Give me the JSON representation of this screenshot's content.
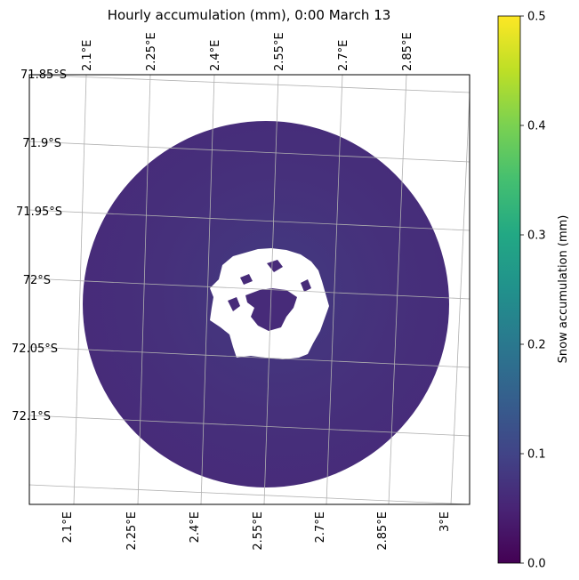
{
  "chart_data": {
    "type": "heatmap",
    "title": "Hourly accumulation (mm), 0:00 March 13",
    "colorbar": {
      "label": "Snow accumulation (mm)",
      "range": [
        0,
        0.5
      ],
      "ticks": [
        "0.0",
        "0.1",
        "0.2",
        "0.3",
        "0.4",
        "0.5"
      ],
      "colormap": "viridis"
    },
    "map": {
      "top_lon_labels": [
        "2.1°E",
        "2.25°E",
        "2.4°E",
        "2.55°E",
        "2.7°E",
        "2.85°E"
      ],
      "bottom_lon_labels": [
        "2.1°E",
        "2.25°E",
        "2.4°E",
        "2.55°E",
        "2.7°E",
        "2.85°E",
        "3°E"
      ],
      "lat_labels": [
        "71.85°S",
        "71.9°S",
        "71.95°S",
        "72°S",
        "72.05°S",
        "72.1°S"
      ],
      "gridlines": true,
      "field": {
        "typical_value_mm": 0.05,
        "shape": "circular radar coverage",
        "center_gap": "no data near the radar site"
      }
    }
  }
}
